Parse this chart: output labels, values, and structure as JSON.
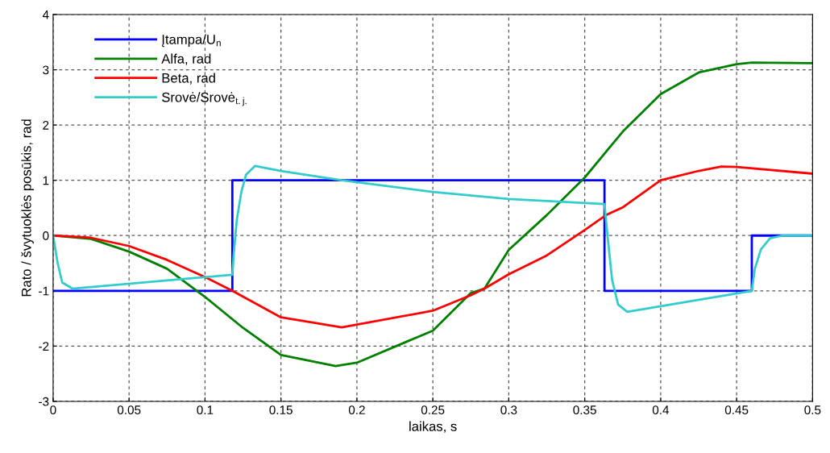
{
  "chart_data": {
    "type": "line",
    "xlabel": "laikas, s",
    "ylabel": "Rato / švytuoklės posūkis, rad",
    "xlim": [
      0,
      0.5
    ],
    "ylim": [
      -3,
      4
    ],
    "xticks": [
      0,
      0.05,
      0.1,
      0.15,
      0.2,
      0.25,
      0.3,
      0.35,
      0.4,
      0.45,
      0.5
    ],
    "yticks": [
      -3,
      -2,
      -1,
      0,
      1,
      2,
      3,
      4
    ],
    "grid": true,
    "legend": "top left",
    "line_style": "solid",
    "series": [
      {
        "name": "Įtampa/U$_{n}$",
        "color": "#0000ff",
        "x": [
          0,
          0.118,
          0.118,
          0.363,
          0.363,
          0.46,
          0.46,
          0.5
        ],
        "values": [
          -1,
          -1,
          1,
          1,
          -1,
          -1,
          0,
          0
        ]
      },
      {
        "name": "Alfa, rad",
        "color": "#008000",
        "x": [
          0,
          0.025,
          0.05,
          0.075,
          0.1,
          0.125,
          0.15,
          0.186,
          0.2,
          0.25,
          0.275,
          0.284,
          0.3,
          0.325,
          0.35,
          0.375,
          0.4,
          0.425,
          0.45,
          0.46,
          0.5
        ],
        "values": [
          0,
          -0.06,
          -0.29,
          -0.6,
          -1.11,
          -1.67,
          -2.16,
          -2.36,
          -2.3,
          -1.72,
          -1.04,
          -0.96,
          -0.26,
          0.37,
          1.05,
          1.88,
          2.56,
          2.95,
          3.1,
          3.13,
          3.12
        ]
      },
      {
        "name": "Beta, rad",
        "color": "#ff0000",
        "x": [
          0,
          0.025,
          0.05,
          0.075,
          0.1,
          0.118,
          0.15,
          0.19,
          0.25,
          0.275,
          0.284,
          0.3,
          0.325,
          0.35,
          0.364,
          0.375,
          0.4,
          0.425,
          0.44,
          0.45,
          0.5
        ],
        "values": [
          0,
          -0.04,
          -0.19,
          -0.44,
          -0.75,
          -1.0,
          -1.48,
          -1.66,
          -1.36,
          -1.08,
          -0.96,
          -0.7,
          -0.36,
          0.1,
          0.37,
          0.51,
          1.0,
          1.17,
          1.25,
          1.24,
          1.12
        ]
      },
      {
        "name": "Srovė/Srovė$_{t.j.}$",
        "color": "#33cccc",
        "x": [
          0,
          0.003,
          0.006,
          0.0127,
          0.118,
          0.119,
          0.121,
          0.124,
          0.127,
          0.133,
          0.15,
          0.19,
          0.25,
          0.3,
          0.363,
          0.365,
          0.368,
          0.372,
          0.378,
          0.46,
          0.462,
          0.466,
          0.472,
          0.48,
          0.5
        ],
        "values": [
          0,
          -0.5,
          -0.85,
          -0.96,
          -0.71,
          -0.3,
          0.3,
          0.8,
          1.1,
          1.26,
          1.17,
          1.0,
          0.79,
          0.66,
          0.57,
          0,
          -0.8,
          -1.25,
          -1.38,
          -1.0,
          -0.6,
          -0.25,
          -0.05,
          0,
          0
        ]
      }
    ]
  }
}
